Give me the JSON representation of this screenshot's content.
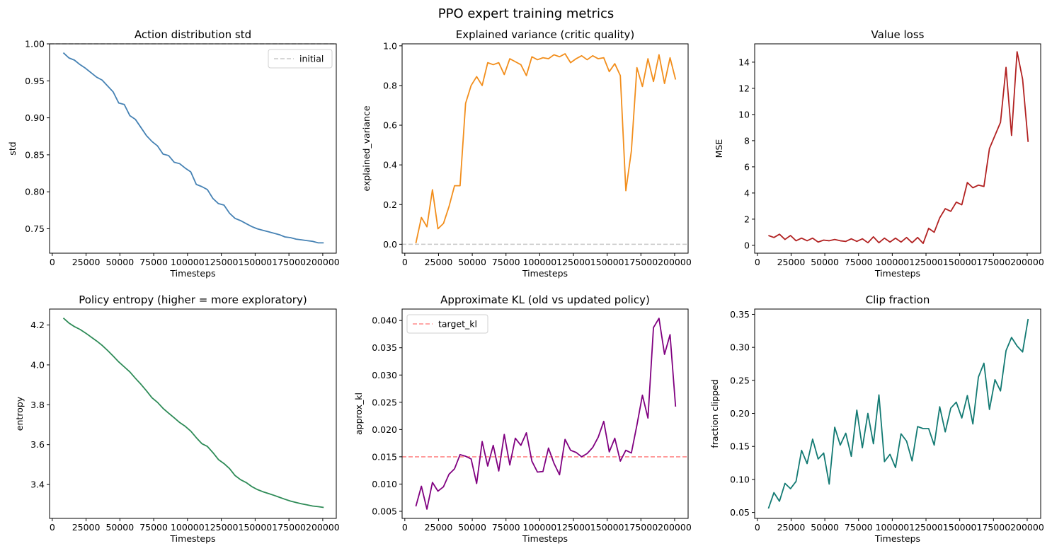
{
  "figure": {
    "suptitle": "PPO expert training metrics"
  },
  "chart_data": [
    {
      "id": "std",
      "type": "line",
      "title": "Action distribution std",
      "xlabel": "Timesteps",
      "ylabel": "std",
      "xlim": [
        -2000,
        210000
      ],
      "ylim": [
        0.717,
        1.0
      ],
      "xticks": [
        0,
        25000,
        50000,
        75000,
        100000,
        125000,
        150000,
        175000,
        200000
      ],
      "yticks": [
        0.75,
        0.8,
        0.85,
        0.9,
        0.95,
        1.0
      ],
      "ytick_labels": [
        "0.75",
        "0.80",
        "0.85",
        "0.90",
        "0.95",
        "1.00"
      ],
      "x": [
        8192,
        12288,
        16384,
        20480,
        24576,
        28672,
        32768,
        36864,
        40960,
        45056,
        49152,
        53248,
        57344,
        61440,
        65536,
        69632,
        73728,
        77824,
        81920,
        86016,
        90112,
        94208,
        98304,
        102400,
        106496,
        110592,
        114688,
        118784,
        122880,
        126976,
        131072,
        135168,
        139264,
        143360,
        147456,
        151552,
        155648,
        159744,
        163840,
        167936,
        172032,
        176128,
        180224,
        184320,
        188416,
        192512,
        196608,
        200704
      ],
      "series": [
        {
          "color": "#4682b4",
          "values": [
            0.988,
            0.981,
            0.978,
            0.972,
            0.967,
            0.961,
            0.955,
            0.951,
            0.943,
            0.935,
            0.92,
            0.918,
            0.903,
            0.898,
            0.887,
            0.876,
            0.868,
            0.862,
            0.851,
            0.849,
            0.84,
            0.838,
            0.832,
            0.827,
            0.81,
            0.807,
            0.803,
            0.791,
            0.784,
            0.782,
            0.771,
            0.764,
            0.761,
            0.757,
            0.753,
            0.75,
            0.748,
            0.746,
            0.744,
            0.742,
            0.739,
            0.738,
            0.736,
            0.735,
            0.734,
            0.733,
            0.731,
            0.731
          ]
        }
      ],
      "reference_lines": [
        {
          "y": 1.0,
          "color": "#c8c8c8",
          "dash": "dashed",
          "label": "initial"
        }
      ],
      "legend": {
        "position": "upper right",
        "entries": [
          "initial"
        ]
      }
    },
    {
      "id": "explained_variance",
      "type": "line",
      "title": "Explained variance (critic quality)",
      "xlabel": "Timesteps",
      "ylabel": "explained_variance",
      "xlim": [
        -2000,
        210000
      ],
      "ylim": [
        -0.045,
        1.01
      ],
      "xticks": [
        0,
        25000,
        50000,
        75000,
        100000,
        125000,
        150000,
        175000,
        200000
      ],
      "yticks": [
        0.0,
        0.2,
        0.4,
        0.6,
        0.8,
        1.0
      ],
      "ytick_labels": [
        "0.0",
        "0.2",
        "0.4",
        "0.6",
        "0.8",
        "1.0"
      ],
      "x": [
        8192,
        12288,
        16384,
        20480,
        24576,
        28672,
        32768,
        36864,
        40960,
        45056,
        49152,
        53248,
        57344,
        61440,
        65536,
        69632,
        73728,
        77824,
        81920,
        86016,
        90112,
        94208,
        98304,
        102400,
        106496,
        110592,
        114688,
        118784,
        122880,
        126976,
        131072,
        135168,
        139264,
        143360,
        147456,
        151552,
        155648,
        159744,
        163840,
        167936,
        172032,
        176128,
        180224,
        184320,
        188416,
        192512,
        196608,
        200704
      ],
      "series": [
        {
          "color": "#f28e1c",
          "values": [
            0.005,
            0.135,
            0.088,
            0.275,
            0.078,
            0.105,
            0.19,
            0.295,
            0.295,
            0.71,
            0.8,
            0.845,
            0.8,
            0.915,
            0.905,
            0.915,
            0.855,
            0.935,
            0.92,
            0.905,
            0.85,
            0.945,
            0.93,
            0.94,
            0.935,
            0.955,
            0.945,
            0.96,
            0.915,
            0.935,
            0.95,
            0.93,
            0.95,
            0.935,
            0.94,
            0.87,
            0.91,
            0.85,
            0.27,
            0.47,
            0.89,
            0.795,
            0.935,
            0.82,
            0.955,
            0.81,
            0.94,
            0.83
          ]
        }
      ],
      "reference_lines": [
        {
          "y": 0.0,
          "color": "#c8c8c8",
          "dash": "dashed"
        }
      ]
    },
    {
      "id": "value_loss",
      "type": "line",
      "title": "Value loss",
      "xlabel": "Timesteps",
      "ylabel": "MSE",
      "xlim": [
        -2000,
        210000
      ],
      "ylim": [
        -0.6,
        15.4
      ],
      "xticks": [
        0,
        25000,
        50000,
        75000,
        100000,
        125000,
        150000,
        175000,
        200000
      ],
      "yticks": [
        0,
        2,
        4,
        6,
        8,
        10,
        12,
        14
      ],
      "ytick_labels": [
        "0",
        "2",
        "4",
        "6",
        "8",
        "10",
        "12",
        "14"
      ],
      "x": [
        8192,
        12288,
        16384,
        20480,
        24576,
        28672,
        32768,
        36864,
        40960,
        45056,
        49152,
        53248,
        57344,
        61440,
        65536,
        69632,
        73728,
        77824,
        81920,
        86016,
        90112,
        94208,
        98304,
        102400,
        106496,
        110592,
        114688,
        118784,
        122880,
        126976,
        131072,
        135168,
        139264,
        143360,
        147456,
        151552,
        155648,
        159744,
        163840,
        167936,
        172032,
        176128,
        180224,
        184320,
        188416,
        192512,
        196608,
        200704
      ],
      "series": [
        {
          "color": "#b22222",
          "values": [
            0.75,
            0.6,
            0.85,
            0.45,
            0.75,
            0.35,
            0.55,
            0.35,
            0.55,
            0.25,
            0.4,
            0.35,
            0.45,
            0.35,
            0.3,
            0.5,
            0.3,
            0.5,
            0.2,
            0.65,
            0.2,
            0.55,
            0.25,
            0.55,
            0.25,
            0.6,
            0.2,
            0.6,
            0.15,
            1.3,
            1.0,
            2.1,
            2.8,
            2.6,
            3.3,
            3.1,
            4.8,
            4.4,
            4.6,
            4.5,
            7.4,
            8.4,
            9.4,
            13.6,
            8.4,
            14.8,
            12.7,
            7.9
          ]
        }
      ]
    },
    {
      "id": "entropy",
      "type": "line",
      "title": "Policy entropy (higher = more exploratory)",
      "xlabel": "Timesteps",
      "ylabel": "entropy",
      "xlim": [
        -2000,
        210000
      ],
      "ylim": [
        3.23,
        4.28
      ],
      "xticks": [
        0,
        25000,
        50000,
        75000,
        100000,
        125000,
        150000,
        175000,
        200000
      ],
      "yticks": [
        3.4,
        3.6,
        3.8,
        4.0,
        4.2
      ],
      "ytick_labels": [
        "3.4",
        "3.6",
        "3.8",
        "4.0",
        "4.2"
      ],
      "x": [
        8192,
        12288,
        16384,
        20480,
        24576,
        28672,
        32768,
        36864,
        40960,
        45056,
        49152,
        53248,
        57344,
        61440,
        65536,
        69632,
        73728,
        77824,
        81920,
        86016,
        90112,
        94208,
        98304,
        102400,
        106496,
        110592,
        114688,
        118784,
        122880,
        126976,
        131072,
        135168,
        139264,
        143360,
        147456,
        151552,
        155648,
        159744,
        163840,
        167936,
        172032,
        176128,
        180224,
        184320,
        188416,
        192512,
        196608,
        200704
      ],
      "series": [
        {
          "color": "#2e8b57",
          "values": [
            4.235,
            4.21,
            4.192,
            4.178,
            4.16,
            4.14,
            4.12,
            4.098,
            4.072,
            4.044,
            4.015,
            3.99,
            3.965,
            3.933,
            3.903,
            3.87,
            3.835,
            3.812,
            3.782,
            3.758,
            3.735,
            3.711,
            3.692,
            3.668,
            3.635,
            3.605,
            3.591,
            3.56,
            3.525,
            3.505,
            3.48,
            3.445,
            3.424,
            3.41,
            3.39,
            3.375,
            3.364,
            3.355,
            3.346,
            3.336,
            3.326,
            3.317,
            3.31,
            3.303,
            3.298,
            3.292,
            3.289,
            3.285
          ]
        }
      ]
    },
    {
      "id": "approx_kl",
      "type": "line",
      "title": "Approximate KL (old vs updated policy)",
      "xlabel": "Timesteps",
      "ylabel": "approx_kl",
      "xlim": [
        -2000,
        210000
      ],
      "ylim": [
        0.0037,
        0.0421
      ],
      "xticks": [
        0,
        25000,
        50000,
        75000,
        100000,
        125000,
        150000,
        175000,
        200000
      ],
      "yticks": [
        0.005,
        0.01,
        0.015,
        0.02,
        0.025,
        0.03,
        0.035,
        0.04
      ],
      "ytick_labels": [
        "0.005",
        "0.010",
        "0.015",
        "0.020",
        "0.025",
        "0.030",
        "0.035",
        "0.040"
      ],
      "x": [
        8192,
        12288,
        16384,
        20480,
        24576,
        28672,
        32768,
        36864,
        40960,
        45056,
        49152,
        53248,
        57344,
        61440,
        65536,
        69632,
        73728,
        77824,
        81920,
        86016,
        90112,
        94208,
        98304,
        102400,
        106496,
        110592,
        114688,
        118784,
        122880,
        126976,
        131072,
        135168,
        139264,
        143360,
        147456,
        151552,
        155648,
        159744,
        163840,
        167936,
        172032,
        176128,
        180224,
        184320,
        188416,
        192512,
        196608,
        200704
      ],
      "series": [
        {
          "color": "#800080",
          "values": [
            0.0059,
            0.0096,
            0.0054,
            0.0103,
            0.0087,
            0.0095,
            0.0118,
            0.0128,
            0.0154,
            0.0151,
            0.0146,
            0.0101,
            0.0178,
            0.0133,
            0.0171,
            0.0124,
            0.0191,
            0.0135,
            0.0184,
            0.0171,
            0.0194,
            0.0142,
            0.0122,
            0.0123,
            0.0166,
            0.0138,
            0.0117,
            0.0182,
            0.0162,
            0.0158,
            0.015,
            0.0156,
            0.0167,
            0.0186,
            0.0215,
            0.0159,
            0.0184,
            0.0142,
            0.0162,
            0.0157,
            0.0208,
            0.0263,
            0.0221,
            0.0387,
            0.0404,
            0.0338,
            0.0374,
            0.0242
          ]
        }
      ],
      "reference_lines": [
        {
          "y": 0.015,
          "color": "#ff8a8a",
          "dash": "dashed",
          "label": "target_kl"
        }
      ],
      "legend": {
        "position": "upper left",
        "entries": [
          "target_kl"
        ]
      }
    },
    {
      "id": "clip_fraction",
      "type": "line",
      "title": "Clip fraction",
      "xlabel": "Timesteps",
      "ylabel": "fraction clipped",
      "xlim": [
        -2000,
        210000
      ],
      "ylim": [
        0.041,
        0.358
      ],
      "xticks": [
        0,
        25000,
        50000,
        75000,
        100000,
        125000,
        150000,
        175000,
        200000
      ],
      "yticks": [
        0.05,
        0.1,
        0.15,
        0.2,
        0.25,
        0.3,
        0.35
      ],
      "ytick_labels": [
        "0.05",
        "0.10",
        "0.15",
        "0.20",
        "0.25",
        "0.30",
        "0.35"
      ],
      "x": [
        8192,
        12288,
        16384,
        20480,
        24576,
        28672,
        32768,
        36864,
        40960,
        45056,
        49152,
        53248,
        57344,
        61440,
        65536,
        69632,
        73728,
        77824,
        81920,
        86016,
        90112,
        94208,
        98304,
        102400,
        106496,
        110592,
        114688,
        118784,
        122880,
        126976,
        131072,
        135168,
        139264,
        143360,
        147456,
        151552,
        155648,
        159744,
        163840,
        167936,
        172032,
        176128,
        180224,
        184320,
        188416,
        192512,
        196608,
        200704
      ],
      "series": [
        {
          "color": "#137a73",
          "values": [
            0.056,
            0.08,
            0.067,
            0.094,
            0.086,
            0.097,
            0.144,
            0.124,
            0.161,
            0.131,
            0.14,
            0.093,
            0.179,
            0.152,
            0.17,
            0.135,
            0.205,
            0.148,
            0.2,
            0.154,
            0.228,
            0.127,
            0.138,
            0.118,
            0.169,
            0.158,
            0.128,
            0.18,
            0.177,
            0.177,
            0.152,
            0.21,
            0.172,
            0.208,
            0.217,
            0.193,
            0.227,
            0.184,
            0.255,
            0.276,
            0.206,
            0.251,
            0.234,
            0.295,
            0.315,
            0.302,
            0.293,
            0.343
          ]
        }
      ]
    }
  ]
}
